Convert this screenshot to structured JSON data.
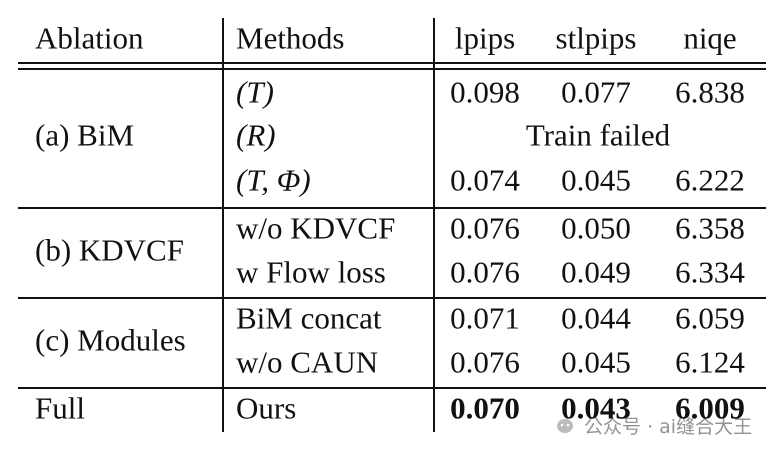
{
  "table": {
    "header": [
      "Ablation",
      "Methods",
      "lpips",
      "stlpips",
      "niqe"
    ],
    "groups": [
      {
        "name": "(a) BiM",
        "rows": [
          {
            "method": "(T)",
            "values": [
              "0.098",
              "0.077",
              "6.838"
            ]
          },
          {
            "method": "(R)",
            "note": "Train failed"
          },
          {
            "method": "(T, Φ)",
            "values": [
              "0.074",
              "0.045",
              "6.222"
            ]
          }
        ]
      },
      {
        "name": "(b) KDVCF",
        "rows": [
          {
            "method": "w/o KDVCF",
            "values": [
              "0.076",
              "0.050",
              "6.358"
            ]
          },
          {
            "method": "w Flow loss",
            "values": [
              "0.076",
              "0.049",
              "6.334"
            ]
          }
        ]
      },
      {
        "name": "(c) Modules",
        "rows": [
          {
            "method": "BiM concat",
            "values": [
              "0.071",
              "0.044",
              "6.059"
            ]
          },
          {
            "method": "w/o CAUN",
            "values": [
              "0.076",
              "0.045",
              "6.124"
            ]
          }
        ]
      },
      {
        "name": "Full",
        "rows": [
          {
            "method": "Ours",
            "values": [
              "0.070",
              "0.043",
              "6.009"
            ]
          }
        ]
      }
    ]
  },
  "watermark": "公众号 · ai缝合大王"
}
